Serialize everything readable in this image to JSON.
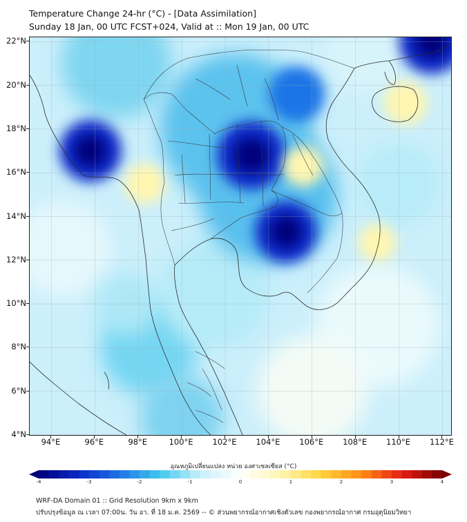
{
  "header": {
    "title_line1": "Temperature Change 24-hr (°C) - [Data Assimilation]",
    "title_line2": "Sunday 18 Jan, 00 UTC FCST+024, Valid at :: Mon 19 Jan, 00 UTC"
  },
  "map": {
    "lat_labels": [
      "22°N",
      "20°N",
      "18°N",
      "16°N",
      "14°N",
      "12°N",
      "10°N",
      "8°N",
      "6°N",
      "4°N"
    ],
    "lon_labels": [
      "94°E",
      "96°E",
      "98°E",
      "100°E",
      "102°E",
      "104°E",
      "106°E",
      "108°E",
      "110°E",
      "112°E"
    ],
    "lat_range": [
      4,
      22.2
    ],
    "lon_range": [
      93,
      112.4
    ],
    "features": [
      {
        "name": "cooling-core-northeast-thailand",
        "lon": 103.2,
        "lat": 16.8,
        "value": -3.5
      },
      {
        "name": "cooling-cambodia",
        "lon": 104.8,
        "lat": 13.3,
        "value": -3.0
      },
      {
        "name": "cooling-myanmar-west",
        "lon": 95.8,
        "lat": 17.0,
        "value": -3.0
      },
      {
        "name": "cooling-north-vietnam",
        "lon": 105.3,
        "lat": 19.6,
        "value": -2.5
      },
      {
        "name": "cooling-gulf-tonkin-north",
        "lon": 111.5,
        "lat": 22.0,
        "value": -3.2
      },
      {
        "name": "warming-hainan",
        "lon": 110.3,
        "lat": 19.2,
        "value": 0.7
      },
      {
        "name": "warming-west-thailand",
        "lon": 98.3,
        "lat": 15.5,
        "value": 0.6
      },
      {
        "name": "warming-central-laos",
        "lon": 105.6,
        "lat": 16.3,
        "value": 0.6
      },
      {
        "name": "warming-south-vietnam-coast",
        "lon": 109.0,
        "lat": 12.8,
        "value": 0.5
      }
    ]
  },
  "colorbar": {
    "title": "อุณหภูมิเปลี่ยนแปลง หน่วย องศาเซลเซียส (°C)",
    "min": -4,
    "max": 4,
    "ticks": [
      "-4",
      "-3",
      "-2",
      "-1",
      "0",
      "1",
      "2",
      "3",
      "4"
    ],
    "colors": [
      "#00007a",
      "#0a2ac8",
      "#1e74e6",
      "#40c8ee",
      "#c8f0fa",
      "#ffffff",
      "#fff6b0",
      "#ffd23c",
      "#ff8c14",
      "#e61e14",
      "#7a0000"
    ]
  },
  "footer": {
    "line1": "WRF-DA Domain 01 :: Grid Resolution 9km x 9km",
    "line2": "ปรับปรุงข้อมูล ณ เวลา 07:00น. วัน อา. ที่ 18 ม.ค. 2569 -- © ส่วนพยากรณ์อากาศเชิงตัวเลข กองพยากรณ์อากาศ กรมอุตุนิยมวิทยา"
  }
}
